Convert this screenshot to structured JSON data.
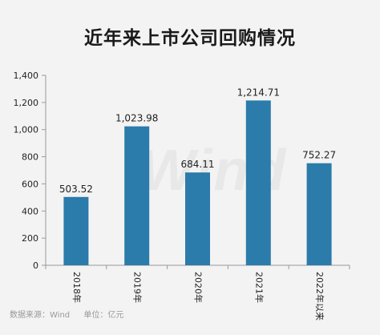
{
  "colors": {
    "bar": "#2b7bab",
    "axis": "#9a9a9a",
    "text": "#222222",
    "background": "#f3f3f3"
  },
  "watermark": "Wind",
  "footer": {
    "source": "数据来源：Wind",
    "unit": "单位：亿元"
  },
  "chart_data": {
    "type": "bar",
    "title": "近年来上市公司回购情况",
    "categories": [
      "2018年",
      "2019年",
      "2020年",
      "2021年",
      "2022年以来"
    ],
    "values": [
      503.52,
      1023.98,
      684.11,
      1214.71,
      752.27
    ],
    "value_labels": [
      "503.52",
      "1,023.98",
      "684.11",
      "1,214.71",
      "752.27"
    ],
    "ylim": [
      0,
      1400
    ],
    "yticks": [
      0,
      200,
      400,
      600,
      800,
      1000,
      1200,
      1400
    ],
    "ytick_labels": [
      "0",
      "200",
      "400",
      "600",
      "800",
      "1,000",
      "1,200",
      "1,400"
    ],
    "grid": false,
    "xlabel": "",
    "ylabel": ""
  }
}
